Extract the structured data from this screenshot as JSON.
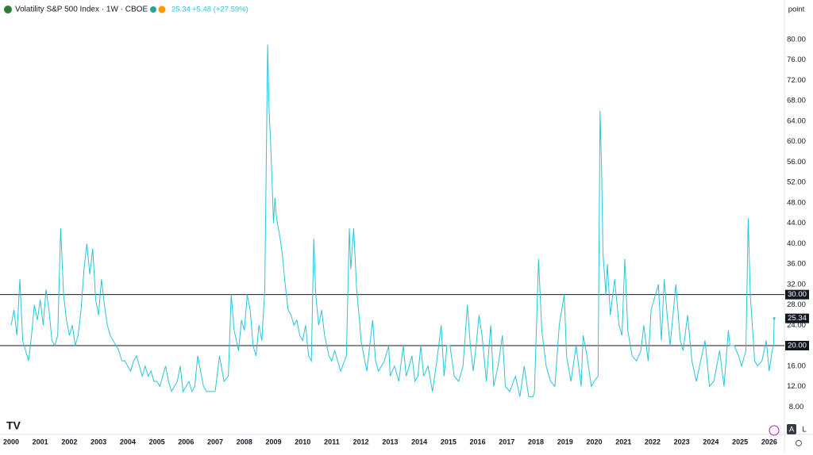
{
  "chart_data": {
    "type": "line",
    "title": "Volatility S&P 500 Index · 1W · CBOE",
    "last_price": "25.34",
    "change": "+5.48 (+27.59%)",
    "unit": "point",
    "buttons": [
      "A",
      "L"
    ],
    "series": [
      {
        "color": "#26c6da",
        "x": [
          2000.0,
          2000.1,
          2000.2,
          2000.3,
          2000.4,
          2000.5,
          2000.6,
          2000.7,
          2000.8,
          2000.9,
          2001.0,
          2001.1,
          2001.2,
          2001.3,
          2001.4,
          2001.5,
          2001.6,
          2001.7,
          2001.8,
          2001.9,
          2002.0,
          2002.1,
          2002.2,
          2002.3,
          2002.4,
          2002.5,
          2002.6,
          2002.7,
          2002.8,
          2002.9,
          2003.0,
          2003.1,
          2003.2,
          2003.3,
          2003.4,
          2003.5,
          2003.6,
          2003.7,
          2003.8,
          2003.9,
          2004.0,
          2004.1,
          2004.2,
          2004.3,
          2004.4,
          2004.5,
          2004.6,
          2004.7,
          2004.8,
          2004.9,
          2005.0,
          2005.1,
          2005.2,
          2005.3,
          2005.4,
          2005.5,
          2005.6,
          2005.7,
          2005.8,
          2005.9,
          2006.0,
          2006.1,
          2006.2,
          2006.3,
          2006.4,
          2006.5,
          2006.6,
          2006.7,
          2006.8,
          2006.9,
          2007.0,
          2007.15,
          2007.3,
          2007.45,
          2007.55,
          2007.65,
          2007.8,
          2007.9,
          2008.0,
          2008.1,
          2008.2,
          2008.3,
          2008.4,
          2008.5,
          2008.6,
          2008.7,
          2008.75,
          2008.8,
          2008.85,
          2008.9,
          2008.95,
          2009.0,
          2009.05,
          2009.1,
          2009.2,
          2009.3,
          2009.4,
          2009.5,
          2009.6,
          2009.7,
          2009.8,
          2009.9,
          2010.0,
          2010.1,
          2010.2,
          2010.3,
          2010.38,
          2010.45,
          2010.55,
          2010.65,
          2010.75,
          2010.9,
          2011.0,
          2011.1,
          2011.2,
          2011.3,
          2011.5,
          2011.6,
          2011.65,
          2011.75,
          2011.85,
          2011.95,
          2012.0,
          2012.1,
          2012.2,
          2012.3,
          2012.4,
          2012.5,
          2012.6,
          2012.7,
          2012.8,
          2012.95,
          2013.0,
          2013.15,
          2013.3,
          2013.45,
          2013.55,
          2013.65,
          2013.75,
          2013.85,
          2013.95,
          2014.05,
          2014.15,
          2014.3,
          2014.45,
          2014.6,
          2014.75,
          2014.85,
          2014.95,
          2015.05,
          2015.2,
          2015.35,
          2015.5,
          2015.65,
          2015.75,
          2015.85,
          2015.95,
          2016.05,
          2016.15,
          2016.3,
          2016.45,
          2016.55,
          2016.7,
          2016.85,
          2016.95,
          2017.1,
          2017.3,
          2017.45,
          2017.6,
          2017.75,
          2017.9,
          2017.95,
          2018.09,
          2018.2,
          2018.35,
          2018.5,
          2018.65,
          2018.8,
          2018.97,
          2019.05,
          2019.2,
          2019.38,
          2019.55,
          2019.62,
          2019.75,
          2019.9,
          2020.0,
          2020.13,
          2020.2,
          2020.25,
          2020.3,
          2020.4,
          2020.45,
          2020.55,
          2020.7,
          2020.85,
          2020.95,
          2021.05,
          2021.15,
          2021.3,
          2021.45,
          2021.6,
          2021.7,
          2021.85,
          2021.95,
          2022.1,
          2022.2,
          2022.3,
          2022.4,
          2022.5,
          2022.6,
          2022.8,
          2022.95,
          2023.05,
          2023.2,
          2023.35,
          2023.5,
          2023.65,
          2023.8,
          2023.95,
          2024.1,
          2024.3,
          2024.45,
          2024.6,
          2024.65,
          2024.8,
          2024.95,
          2025.05,
          2025.2,
          2025.28,
          2025.35,
          2025.5,
          2025.6,
          2025.75,
          2025.9,
          2026.0,
          2026.1,
          2026.15,
          2026.17
        ],
        "values": [
          24,
          27,
          22,
          33,
          21,
          19,
          17,
          22,
          28,
          25,
          29,
          24,
          31,
          27,
          21,
          20,
          22,
          43,
          30,
          25,
          22,
          24,
          20,
          22,
          27,
          35,
          40,
          34,
          39,
          29,
          26,
          33,
          28,
          24,
          22,
          21,
          20,
          19,
          17,
          17,
          16,
          15,
          17,
          18,
          16,
          14,
          16,
          14,
          15,
          13,
          13,
          12,
          14,
          16,
          13,
          11,
          12,
          13,
          16,
          11,
          12,
          13,
          11,
          12,
          18,
          15,
          12,
          11,
          11,
          11,
          11,
          18,
          13,
          14,
          30,
          23,
          19,
          25,
          23,
          30,
          27,
          20,
          18,
          24,
          21,
          31,
          55,
          79,
          66,
          60,
          52,
          44,
          49,
          45,
          42,
          38,
          32,
          27,
          26,
          24,
          25,
          22,
          21,
          24,
          18,
          17,
          41,
          30,
          24,
          27,
          22,
          18,
          17,
          19,
          17,
          15,
          18,
          43,
          35,
          43,
          31,
          25,
          21,
          18,
          15,
          20,
          25,
          17,
          15,
          16,
          17,
          20,
          14,
          16,
          13,
          20,
          14,
          16,
          18,
          13,
          14,
          20,
          14,
          16,
          11,
          17,
          24,
          14,
          20,
          20,
          14,
          13,
          16,
          28,
          20,
          15,
          20,
          26,
          22,
          13,
          24,
          12,
          16,
          22,
          12,
          11,
          14,
          10,
          16,
          10,
          10,
          11,
          37,
          23,
          16,
          13,
          12,
          24,
          30,
          18,
          13,
          20,
          12,
          22,
          18,
          12,
          13,
          14,
          66,
          55,
          38,
          30,
          36,
          26,
          33,
          24,
          22,
          37,
          23,
          18,
          17,
          19,
          24,
          17,
          27,
          30,
          32,
          21,
          33,
          26,
          20,
          32,
          21,
          19,
          26,
          17,
          13,
          17,
          21,
          12,
          13,
          19,
          12,
          23,
          20,
          20,
          18,
          16,
          19,
          45,
          30,
          17,
          16,
          17,
          21,
          15,
          19,
          20,
          25.34
        ]
      }
    ],
    "hlines": [
      {
        "value": 30,
        "label": "30.00"
      },
      {
        "value": 20,
        "label": "20.00"
      }
    ],
    "xlim": [
      1999.62,
      2026.44
    ],
    "xticks": [
      2000,
      2001,
      2002,
      2003,
      2004,
      2005,
      2006,
      2007,
      2008,
      2009,
      2010,
      2011,
      2012,
      2013,
      2014,
      2015,
      2016,
      2017,
      2018,
      2019,
      2020,
      2021,
      2022,
      2023,
      2024,
      2025,
      2026
    ],
    "ylim": [
      2.6,
      86.5
    ],
    "yticks": [
      {
        "value": 8,
        "label": "8.00"
      },
      {
        "value": 12,
        "label": "12.00"
      },
      {
        "value": 16,
        "label": "16.00"
      },
      {
        "value": 20,
        "label": "20.00"
      },
      {
        "value": 24,
        "label": "24.00"
      },
      {
        "value": 28,
        "label": "28.00"
      },
      {
        "value": 32,
        "label": "32.00"
      },
      {
        "value": 36,
        "label": "36.00"
      },
      {
        "value": 40,
        "label": "40.00"
      },
      {
        "value": 44,
        "label": "44.00"
      },
      {
        "value": 48,
        "label": "48.00"
      },
      {
        "value": 52,
        "label": "52.00"
      },
      {
        "value": 56,
        "label": "56.00"
      },
      {
        "value": 60,
        "label": "60.00"
      },
      {
        "value": 64,
        "label": "64.00"
      },
      {
        "value": 68,
        "label": "68.00"
      },
      {
        "value": 72,
        "label": "72.00"
      },
      {
        "value": 76,
        "label": "76.00"
      },
      {
        "value": 80,
        "label": "80.00"
      }
    ],
    "grid": false
  }
}
